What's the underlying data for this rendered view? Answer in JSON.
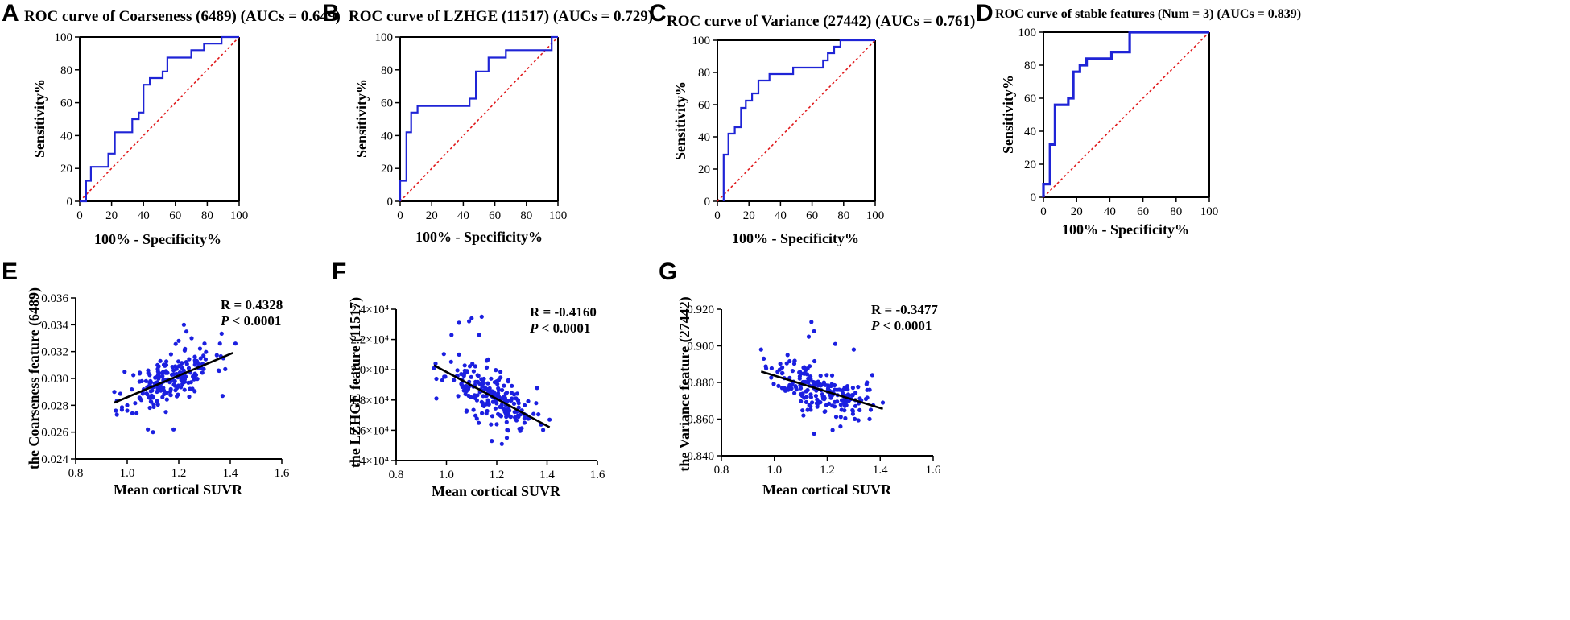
{
  "colors": {
    "roc": "#1f24d6",
    "diagonal": "#e0191b",
    "points": "#1b1fe0",
    "regression": "#000000"
  },
  "chart_data": [
    {
      "id": "A",
      "type": "line",
      "panel_label": "A",
      "title": "ROC curve of Coarseness (6489) (AUCs = 0.649)",
      "xlabel": "100% - Specificity%",
      "ylabel": "Sensitivity%",
      "xlim": [
        0,
        100
      ],
      "ylim": [
        0,
        100
      ],
      "xticks": [
        0,
        20,
        40,
        60,
        80,
        100
      ],
      "yticks": [
        0,
        20,
        40,
        60,
        80,
        100
      ],
      "xtick_labels": [
        "0",
        "20",
        "40",
        "60",
        "80",
        "100"
      ],
      "ytick_labels": [
        "0",
        "20",
        "40",
        "60",
        "80",
        "100"
      ],
      "series": [
        {
          "name": "ROC",
          "x": [
            0,
            4,
            4,
            7,
            7,
            18,
            18,
            22,
            22,
            33,
            33,
            37,
            37,
            40,
            40,
            44,
            44,
            52,
            52,
            55,
            55,
            70,
            70,
            78,
            78,
            89,
            89,
            100
          ],
          "y": [
            0,
            0,
            12.5,
            12.5,
            21,
            21,
            29,
            29,
            42,
            42,
            50,
            50,
            54,
            54,
            71,
            71,
            75,
            75,
            79,
            79,
            87.5,
            87.5,
            92,
            92,
            96,
            96,
            100,
            100
          ]
        },
        {
          "name": "Reference",
          "x": [
            0,
            100
          ],
          "y": [
            0,
            100
          ]
        }
      ]
    },
    {
      "id": "B",
      "type": "line",
      "panel_label": "B",
      "title": "ROC curve of LZHGE (11517) (AUCs = 0.729)",
      "xlabel": "100% - Specificity%",
      "ylabel": "Sensitivity%",
      "xlim": [
        0,
        100
      ],
      "ylim": [
        0,
        100
      ],
      "xticks": [
        0,
        20,
        40,
        60,
        80,
        100
      ],
      "yticks": [
        0,
        20,
        40,
        60,
        80,
        100
      ],
      "xtick_labels": [
        "0",
        "20",
        "40",
        "60",
        "80",
        "100"
      ],
      "ytick_labels": [
        "0",
        "20",
        "40",
        "60",
        "80",
        "100"
      ],
      "series": [
        {
          "name": "ROC",
          "x": [
            0,
            0,
            4,
            4,
            7,
            7,
            11,
            11,
            44,
            44,
            48,
            48,
            56,
            56,
            67,
            67,
            96,
            96,
            100
          ],
          "y": [
            0,
            12.5,
            12.5,
            42,
            42,
            54,
            54,
            58,
            58,
            62.5,
            62.5,
            79,
            79,
            87.5,
            87.5,
            92,
            92,
            100,
            100
          ]
        },
        {
          "name": "Reference",
          "x": [
            0,
            100
          ],
          "y": [
            0,
            100
          ]
        }
      ]
    },
    {
      "id": "C",
      "type": "line",
      "panel_label": "C",
      "title": "ROC curve of Variance (27442) (AUCs = 0.761)",
      "xlabel": "100% - Specificity%",
      "ylabel": "Sensitivity%",
      "xlim": [
        0,
        100
      ],
      "ylim": [
        0,
        100
      ],
      "xticks": [
        0,
        20,
        40,
        60,
        80,
        100
      ],
      "yticks": [
        0,
        20,
        40,
        60,
        80,
        100
      ],
      "xtick_labels": [
        "0",
        "20",
        "40",
        "60",
        "80",
        "100"
      ],
      "ytick_labels": [
        "0",
        "20",
        "40",
        "60",
        "80",
        "100"
      ],
      "series": [
        {
          "name": "ROC",
          "x": [
            4,
            4,
            7,
            7,
            11,
            11,
            15,
            15,
            18,
            18,
            22,
            22,
            26,
            26,
            33,
            33,
            48,
            48,
            67,
            67,
            70,
            70,
            74,
            74,
            78,
            78,
            100
          ],
          "y": [
            0,
            29,
            29,
            42,
            42,
            46,
            46,
            58,
            58,
            62.5,
            62.5,
            67,
            67,
            75,
            75,
            79,
            79,
            83,
            83,
            87.5,
            87.5,
            92,
            92,
            96,
            96,
            100,
            100
          ]
        },
        {
          "name": "Reference",
          "x": [
            0,
            100
          ],
          "y": [
            0,
            100
          ]
        }
      ]
    },
    {
      "id": "D",
      "type": "line",
      "panel_label": "D",
      "title": "ROC curve of stable features (Num = 3) (AUCs = 0.839)",
      "xlabel": "100% - Specificity%",
      "ylabel": "Sensitivity%",
      "xlim": [
        0,
        100
      ],
      "ylim": [
        0,
        100
      ],
      "xticks": [
        0,
        20,
        40,
        60,
        80,
        100
      ],
      "yticks": [
        0,
        20,
        40,
        60,
        80,
        100
      ],
      "xtick_labels": [
        "0",
        "20",
        "40",
        "60",
        "80",
        "100"
      ],
      "ytick_labels": [
        "0",
        "20",
        "40",
        "60",
        "80",
        "100"
      ],
      "series": [
        {
          "name": "ROC",
          "x": [
            0,
            0,
            4,
            4,
            7,
            7,
            15,
            15,
            18,
            18,
            22,
            22,
            26,
            26,
            41,
            41,
            52,
            52,
            100
          ],
          "y": [
            0,
            8,
            8,
            32,
            32,
            56,
            56,
            60,
            60,
            76,
            76,
            80,
            80,
            84,
            84,
            88,
            88,
            100,
            100
          ]
        },
        {
          "name": "Reference",
          "x": [
            0,
            100
          ],
          "y": [
            0,
            100
          ]
        }
      ]
    },
    {
      "id": "E",
      "type": "scatter",
      "panel_label": "E",
      "xlabel": "Mean cortical SUVR",
      "ylabel": "the Coarseness feature (6489)",
      "xlim": [
        0.8,
        1.6
      ],
      "ylim": [
        0.024,
        0.036
      ],
      "xticks": [
        0.8,
        1.0,
        1.2,
        1.4,
        1.6
      ],
      "yticks": [
        0.024,
        0.026,
        0.028,
        0.03,
        0.032,
        0.034,
        0.036
      ],
      "xtick_labels": [
        "0.8",
        "1.0",
        "1.2",
        "1.4",
        "1.6"
      ],
      "ytick_labels": [
        "0.024",
        "0.026",
        "0.028",
        "0.030",
        "0.032",
        "0.034",
        "0.036"
      ],
      "stat_r": "R = 0.4328",
      "stat_p_italic": "P",
      "stat_p_rest": " < 0.0001",
      "regression": {
        "x": [
          0.95,
          1.41
        ],
        "y": [
          0.0282,
          0.0319
        ]
      },
      "seed": 11,
      "n": 190,
      "points": [
        [
          0.96,
          0.0273
        ],
        [
          0.99,
          0.0305
        ],
        [
          1.02,
          0.0274
        ],
        [
          1.05,
          0.0285
        ],
        [
          1.08,
          0.0262
        ],
        [
          1.1,
          0.026
        ],
        [
          1.14,
          0.0293
        ],
        [
          1.18,
          0.0262
        ],
        [
          1.22,
          0.034
        ],
        [
          1.23,
          0.0335
        ],
        [
          1.25,
          0.033
        ],
        [
          1.3,
          0.0326
        ],
        [
          1.36,
          0.0326
        ],
        [
          1.37,
          0.0287
        ],
        [
          1.42,
          0.0326
        ],
        [
          1.2,
          0.0328
        ],
        [
          1.17,
          0.0318
        ],
        [
          1.12,
          0.0303
        ],
        [
          1.06,
          0.029
        ],
        [
          1.0,
          0.028
        ],
        [
          1.27,
          0.0313
        ],
        [
          1.15,
          0.0275
        ],
        [
          1.09,
          0.0298
        ],
        [
          1.21,
          0.03
        ]
      ]
    },
    {
      "id": "F",
      "type": "scatter",
      "panel_label": "F",
      "xlabel": "Mean cortical SUVR",
      "ylabel": "the LZHGE feature (11517)",
      "xlim": [
        0.8,
        1.6
      ],
      "ylim": [
        14000,
        24000
      ],
      "xticks": [
        0.8,
        1.0,
        1.2,
        1.4,
        1.6
      ],
      "yticks": [
        14000,
        16000,
        18000,
        20000,
        22000,
        24000
      ],
      "xtick_labels": [
        "0.8",
        "1.0",
        "1.2",
        "1.4",
        "1.6"
      ],
      "ytick_labels": [
        "1.4×10⁴",
        "1.6×10⁴",
        "1.8×10⁴",
        "2.0×10⁴",
        "2.2×10⁴",
        "2.4×10⁴"
      ],
      "stat_r": "R = -0.4160",
      "stat_p_italic": "P",
      "stat_p_rest": " < 0.0001",
      "regression": {
        "x": [
          0.95,
          1.41
        ],
        "y": [
          20300,
          16200
        ]
      },
      "seed": 23,
      "n": 190,
      "points": [
        [
          1.05,
          23100
        ],
        [
          1.09,
          23200
        ],
        [
          1.1,
          23400
        ],
        [
          1.14,
          23500
        ],
        [
          1.02,
          22300
        ],
        [
          1.13,
          22300
        ],
        [
          0.96,
          19400
        ],
        [
          0.96,
          18100
        ],
        [
          1.22,
          15100
        ],
        [
          1.24,
          15500
        ],
        [
          1.29,
          16100
        ],
        [
          1.33,
          16800
        ],
        [
          1.36,
          18800
        ],
        [
          1.41,
          16700
        ],
        [
          1.18,
          15300
        ],
        [
          1.2,
          16400
        ],
        [
          1.08,
          17300
        ],
        [
          1.16,
          20600
        ],
        [
          1.05,
          21000
        ],
        [
          1.25,
          17300
        ],
        [
          1.31,
          16500
        ]
      ]
    },
    {
      "id": "G",
      "type": "scatter",
      "panel_label": "G",
      "xlabel": "Mean cortical SUVR",
      "ylabel": "the Variance feature (27442)",
      "xlim": [
        0.8,
        1.6
      ],
      "ylim": [
        0.84,
        0.92
      ],
      "xticks": [
        0.8,
        1.0,
        1.2,
        1.4,
        1.6
      ],
      "yticks": [
        0.84,
        0.86,
        0.88,
        0.9,
        0.92
      ],
      "xtick_labels": [
        "0.8",
        "1.0",
        "1.2",
        "1.4",
        "1.6"
      ],
      "ytick_labels": [
        "0.840",
        "0.860",
        "0.880",
        "0.900",
        "0.920"
      ],
      "stat_r": "R = -0.3477",
      "stat_p_italic": "P",
      "stat_p_rest": " < 0.0001",
      "regression": {
        "x": [
          0.95,
          1.41
        ],
        "y": [
          0.886,
          0.8656
        ]
      },
      "seed": 37,
      "n": 190,
      "points": [
        [
          1.14,
          0.913
        ],
        [
          1.15,
          0.908
        ],
        [
          1.13,
          0.905
        ],
        [
          0.95,
          0.898
        ],
        [
          0.96,
          0.893
        ],
        [
          1.23,
          0.901
        ],
        [
          1.3,
          0.898
        ],
        [
          1.15,
          0.852
        ],
        [
          1.22,
          0.854
        ],
        [
          1.25,
          0.856
        ],
        [
          1.41,
          0.869
        ],
        [
          1.36,
          0.876
        ],
        [
          1.35,
          0.88
        ],
        [
          1.37,
          0.884
        ],
        [
          1.05,
          0.895
        ],
        [
          1.11,
          0.862
        ],
        [
          1.29,
          0.871
        ],
        [
          1.19,
          0.864
        ],
        [
          1.08,
          0.878
        ],
        [
          1.02,
          0.887
        ]
      ]
    }
  ]
}
